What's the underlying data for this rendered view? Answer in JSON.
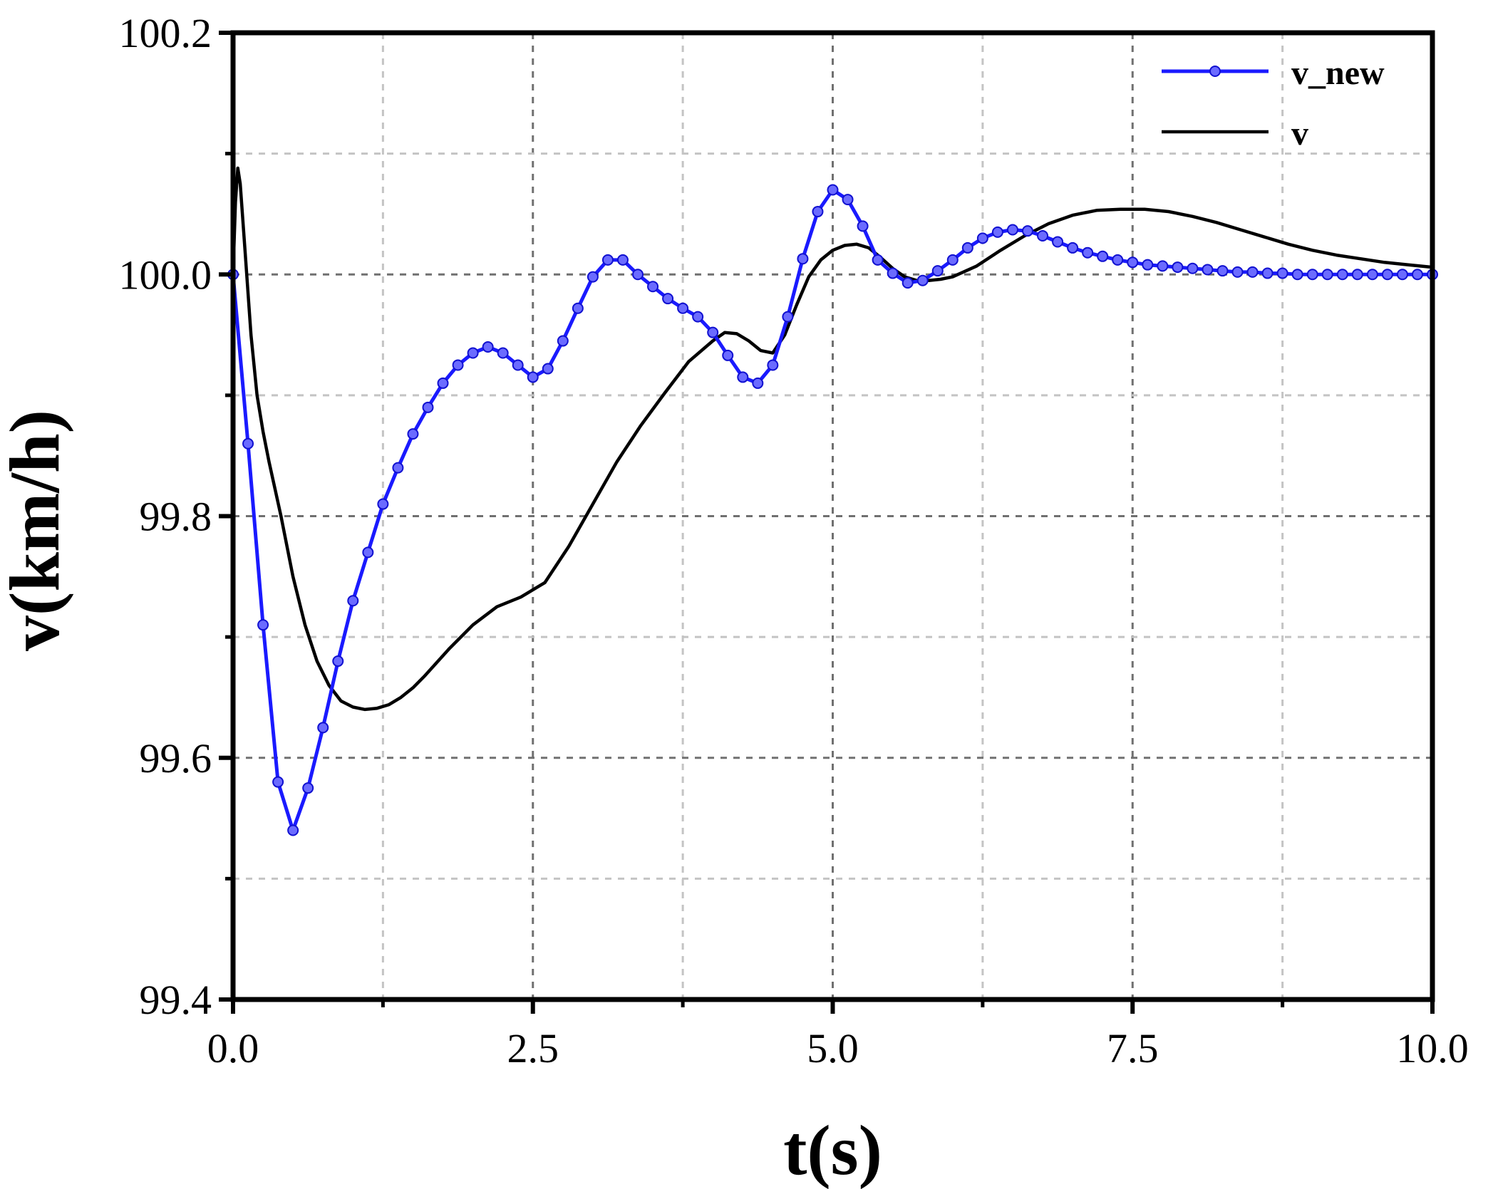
{
  "chart_data": {
    "type": "line",
    "xlabel": "t(s)",
    "ylabel": "v(km/h)",
    "xlim": [
      0,
      10
    ],
    "ylim": [
      99.4,
      100.2
    ],
    "x_ticks": [
      0,
      2.5,
      5,
      7.5,
      10
    ],
    "x_tick_labels": [
      "0.0",
      "2.5",
      "5.0",
      "7.5",
      "10.0"
    ],
    "y_ticks": [
      99.4,
      99.6,
      99.8,
      100.0,
      100.2
    ],
    "y_tick_labels": [
      "99.4",
      "99.6",
      "99.8",
      "100.0",
      "100.2"
    ],
    "x_minor_grid": [
      1.25,
      3.75,
      6.25,
      8.75
    ],
    "y_minor_grid": [
      99.5,
      99.7,
      99.9,
      100.1
    ],
    "grid": true,
    "legend_position": "top-right",
    "series": [
      {
        "name": "v_new",
        "color": "#1a1aff",
        "marker": "circle",
        "points": [
          [
            0.0,
            100.0
          ],
          [
            0.125,
            99.86
          ],
          [
            0.25,
            99.71
          ],
          [
            0.375,
            99.58
          ],
          [
            0.5,
            99.54
          ],
          [
            0.625,
            99.575
          ],
          [
            0.75,
            99.625
          ],
          [
            0.875,
            99.68
          ],
          [
            1.0,
            99.73
          ],
          [
            1.125,
            99.77
          ],
          [
            1.25,
            99.81
          ],
          [
            1.375,
            99.84
          ],
          [
            1.5,
            99.868
          ],
          [
            1.625,
            99.89
          ],
          [
            1.75,
            99.91
          ],
          [
            1.875,
            99.925
          ],
          [
            2.0,
            99.935
          ],
          [
            2.125,
            99.94
          ],
          [
            2.25,
            99.935
          ],
          [
            2.375,
            99.925
          ],
          [
            2.5,
            99.915
          ],
          [
            2.625,
            99.922
          ],
          [
            2.75,
            99.945
          ],
          [
            2.875,
            99.972
          ],
          [
            3.0,
            99.998
          ],
          [
            3.125,
            100.012
          ],
          [
            3.25,
            100.012
          ],
          [
            3.375,
            100.0
          ],
          [
            3.5,
            99.99
          ],
          [
            3.625,
            99.98
          ],
          [
            3.75,
            99.972
          ],
          [
            3.875,
            99.965
          ],
          [
            4.0,
            99.952
          ],
          [
            4.125,
            99.933
          ],
          [
            4.25,
            99.915
          ],
          [
            4.375,
            99.91
          ],
          [
            4.5,
            99.925
          ],
          [
            4.625,
            99.965
          ],
          [
            4.75,
            100.013
          ],
          [
            4.875,
            100.052
          ],
          [
            5.0,
            100.07
          ],
          [
            5.125,
            100.062
          ],
          [
            5.25,
            100.04
          ],
          [
            5.375,
            100.012
          ],
          [
            5.5,
            100.001
          ],
          [
            5.625,
            99.993
          ],
          [
            5.75,
            99.995
          ],
          [
            5.875,
            100.003
          ],
          [
            6.0,
            100.012
          ],
          [
            6.125,
            100.022
          ],
          [
            6.25,
            100.03
          ],
          [
            6.375,
            100.035
          ],
          [
            6.5,
            100.037
          ],
          [
            6.625,
            100.036
          ],
          [
            6.75,
            100.032
          ],
          [
            6.875,
            100.027
          ],
          [
            7.0,
            100.022
          ],
          [
            7.125,
            100.018
          ],
          [
            7.25,
            100.015
          ],
          [
            7.375,
            100.012
          ],
          [
            7.5,
            100.01
          ],
          [
            7.625,
            100.008
          ],
          [
            7.75,
            100.007
          ],
          [
            7.875,
            100.006
          ],
          [
            8.0,
            100.005
          ],
          [
            8.125,
            100.004
          ],
          [
            8.25,
            100.003
          ],
          [
            8.375,
            100.002
          ],
          [
            8.5,
            100.002
          ],
          [
            8.625,
            100.001
          ],
          [
            8.75,
            100.001
          ],
          [
            8.875,
            100.0
          ],
          [
            9.0,
            100.0
          ],
          [
            9.125,
            100.0
          ],
          [
            9.25,
            100.0
          ],
          [
            9.375,
            100.0
          ],
          [
            9.5,
            100.0
          ],
          [
            9.625,
            100.0
          ],
          [
            9.75,
            100.0
          ],
          [
            9.875,
            100.0
          ],
          [
            10.0,
            100.0
          ]
        ]
      },
      {
        "name": "v",
        "color": "#000000",
        "marker": "none",
        "points": [
          [
            0.0,
            100.0
          ],
          [
            0.02,
            100.06
          ],
          [
            0.04,
            100.088
          ],
          [
            0.06,
            100.075
          ],
          [
            0.1,
            100.02
          ],
          [
            0.15,
            99.95
          ],
          [
            0.2,
            99.9
          ],
          [
            0.25,
            99.87
          ],
          [
            0.3,
            99.845
          ],
          [
            0.4,
            99.8
          ],
          [
            0.5,
            99.75
          ],
          [
            0.6,
            99.71
          ],
          [
            0.7,
            99.68
          ],
          [
            0.8,
            99.66
          ],
          [
            0.9,
            99.647
          ],
          [
            1.0,
            99.642
          ],
          [
            1.1,
            99.64
          ],
          [
            1.2,
            99.641
          ],
          [
            1.3,
            99.644
          ],
          [
            1.4,
            99.65
          ],
          [
            1.5,
            99.658
          ],
          [
            1.6,
            99.668
          ],
          [
            1.8,
            99.69
          ],
          [
            2.0,
            99.71
          ],
          [
            2.2,
            99.725
          ],
          [
            2.4,
            99.733
          ],
          [
            2.6,
            99.745
          ],
          [
            2.8,
            99.775
          ],
          [
            3.0,
            99.81
          ],
          [
            3.2,
            99.845
          ],
          [
            3.4,
            99.875
          ],
          [
            3.6,
            99.902
          ],
          [
            3.8,
            99.928
          ],
          [
            4.0,
            99.945
          ],
          [
            4.1,
            99.952
          ],
          [
            4.2,
            99.951
          ],
          [
            4.3,
            99.945
          ],
          [
            4.4,
            99.937
          ],
          [
            4.5,
            99.935
          ],
          [
            4.6,
            99.95
          ],
          [
            4.7,
            99.975
          ],
          [
            4.8,
            99.998
          ],
          [
            4.9,
            100.012
          ],
          [
            5.0,
            100.02
          ],
          [
            5.1,
            100.024
          ],
          [
            5.2,
            100.025
          ],
          [
            5.3,
            100.022
          ],
          [
            5.4,
            100.014
          ],
          [
            5.5,
            100.005
          ],
          [
            5.6,
            99.998
          ],
          [
            5.7,
            99.995
          ],
          [
            5.8,
            99.995
          ],
          [
            5.9,
            99.996
          ],
          [
            6.0,
            99.998
          ],
          [
            6.2,
            100.007
          ],
          [
            6.4,
            100.02
          ],
          [
            6.6,
            100.032
          ],
          [
            6.8,
            100.042
          ],
          [
            7.0,
            100.049
          ],
          [
            7.2,
            100.053
          ],
          [
            7.4,
            100.054
          ],
          [
            7.6,
            100.054
          ],
          [
            7.8,
            100.052
          ],
          [
            8.0,
            100.048
          ],
          [
            8.2,
            100.043
          ],
          [
            8.4,
            100.037
          ],
          [
            8.6,
            100.031
          ],
          [
            8.8,
            100.025
          ],
          [
            9.0,
            100.02
          ],
          [
            9.2,
            100.016
          ],
          [
            9.4,
            100.013
          ],
          [
            9.6,
            100.01
          ],
          [
            9.8,
            100.008
          ],
          [
            10.0,
            100.006
          ]
        ]
      }
    ]
  }
}
